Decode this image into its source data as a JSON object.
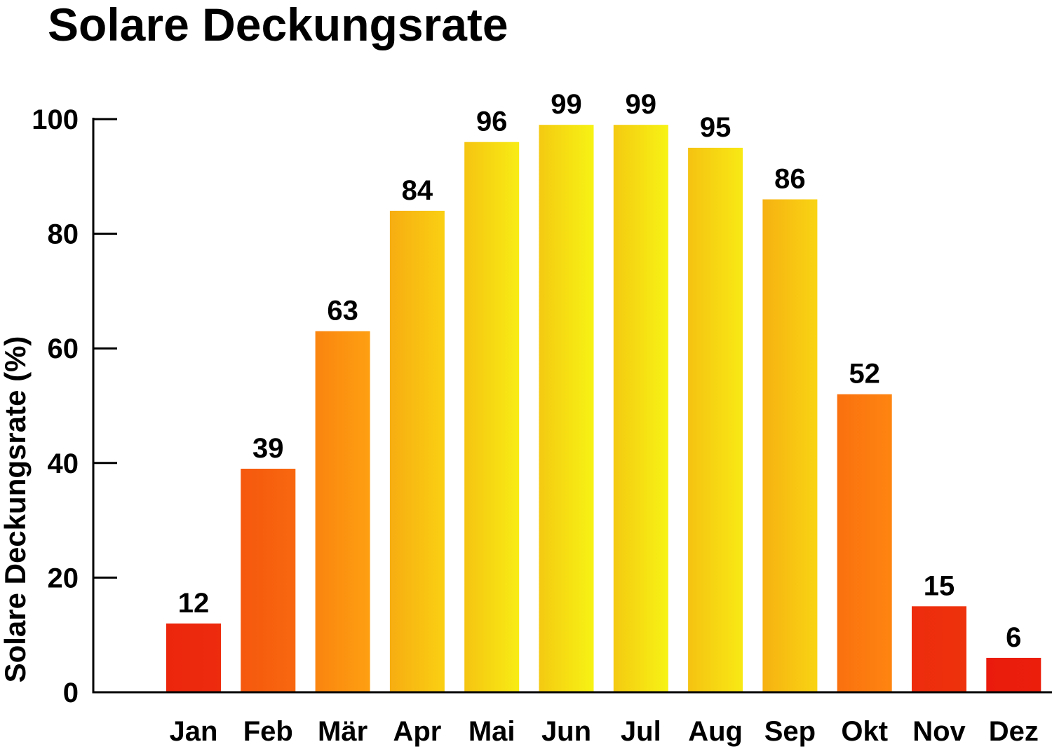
{
  "chart_data": {
    "type": "bar",
    "title": "Solare Deckungsrate",
    "xlabel": "",
    "ylabel": "Solare Deckungsrate (%)",
    "ylim": [
      0,
      100
    ],
    "yticks": [
      0,
      20,
      40,
      60,
      80,
      100
    ],
    "categories": [
      "Jan",
      "Feb",
      "Mär",
      "Apr",
      "Mai",
      "Jun",
      "Jul",
      "Aug",
      "Sep",
      "Okt",
      "Nov",
      "Dez"
    ],
    "values": [
      12,
      39,
      63,
      84,
      96,
      99,
      99,
      95,
      86,
      52,
      15,
      6
    ],
    "grid": false,
    "legend": "none",
    "colors": {
      "low": "#e8100c",
      "mid": "#ff8c10",
      "high": "#f7f514"
    }
  }
}
